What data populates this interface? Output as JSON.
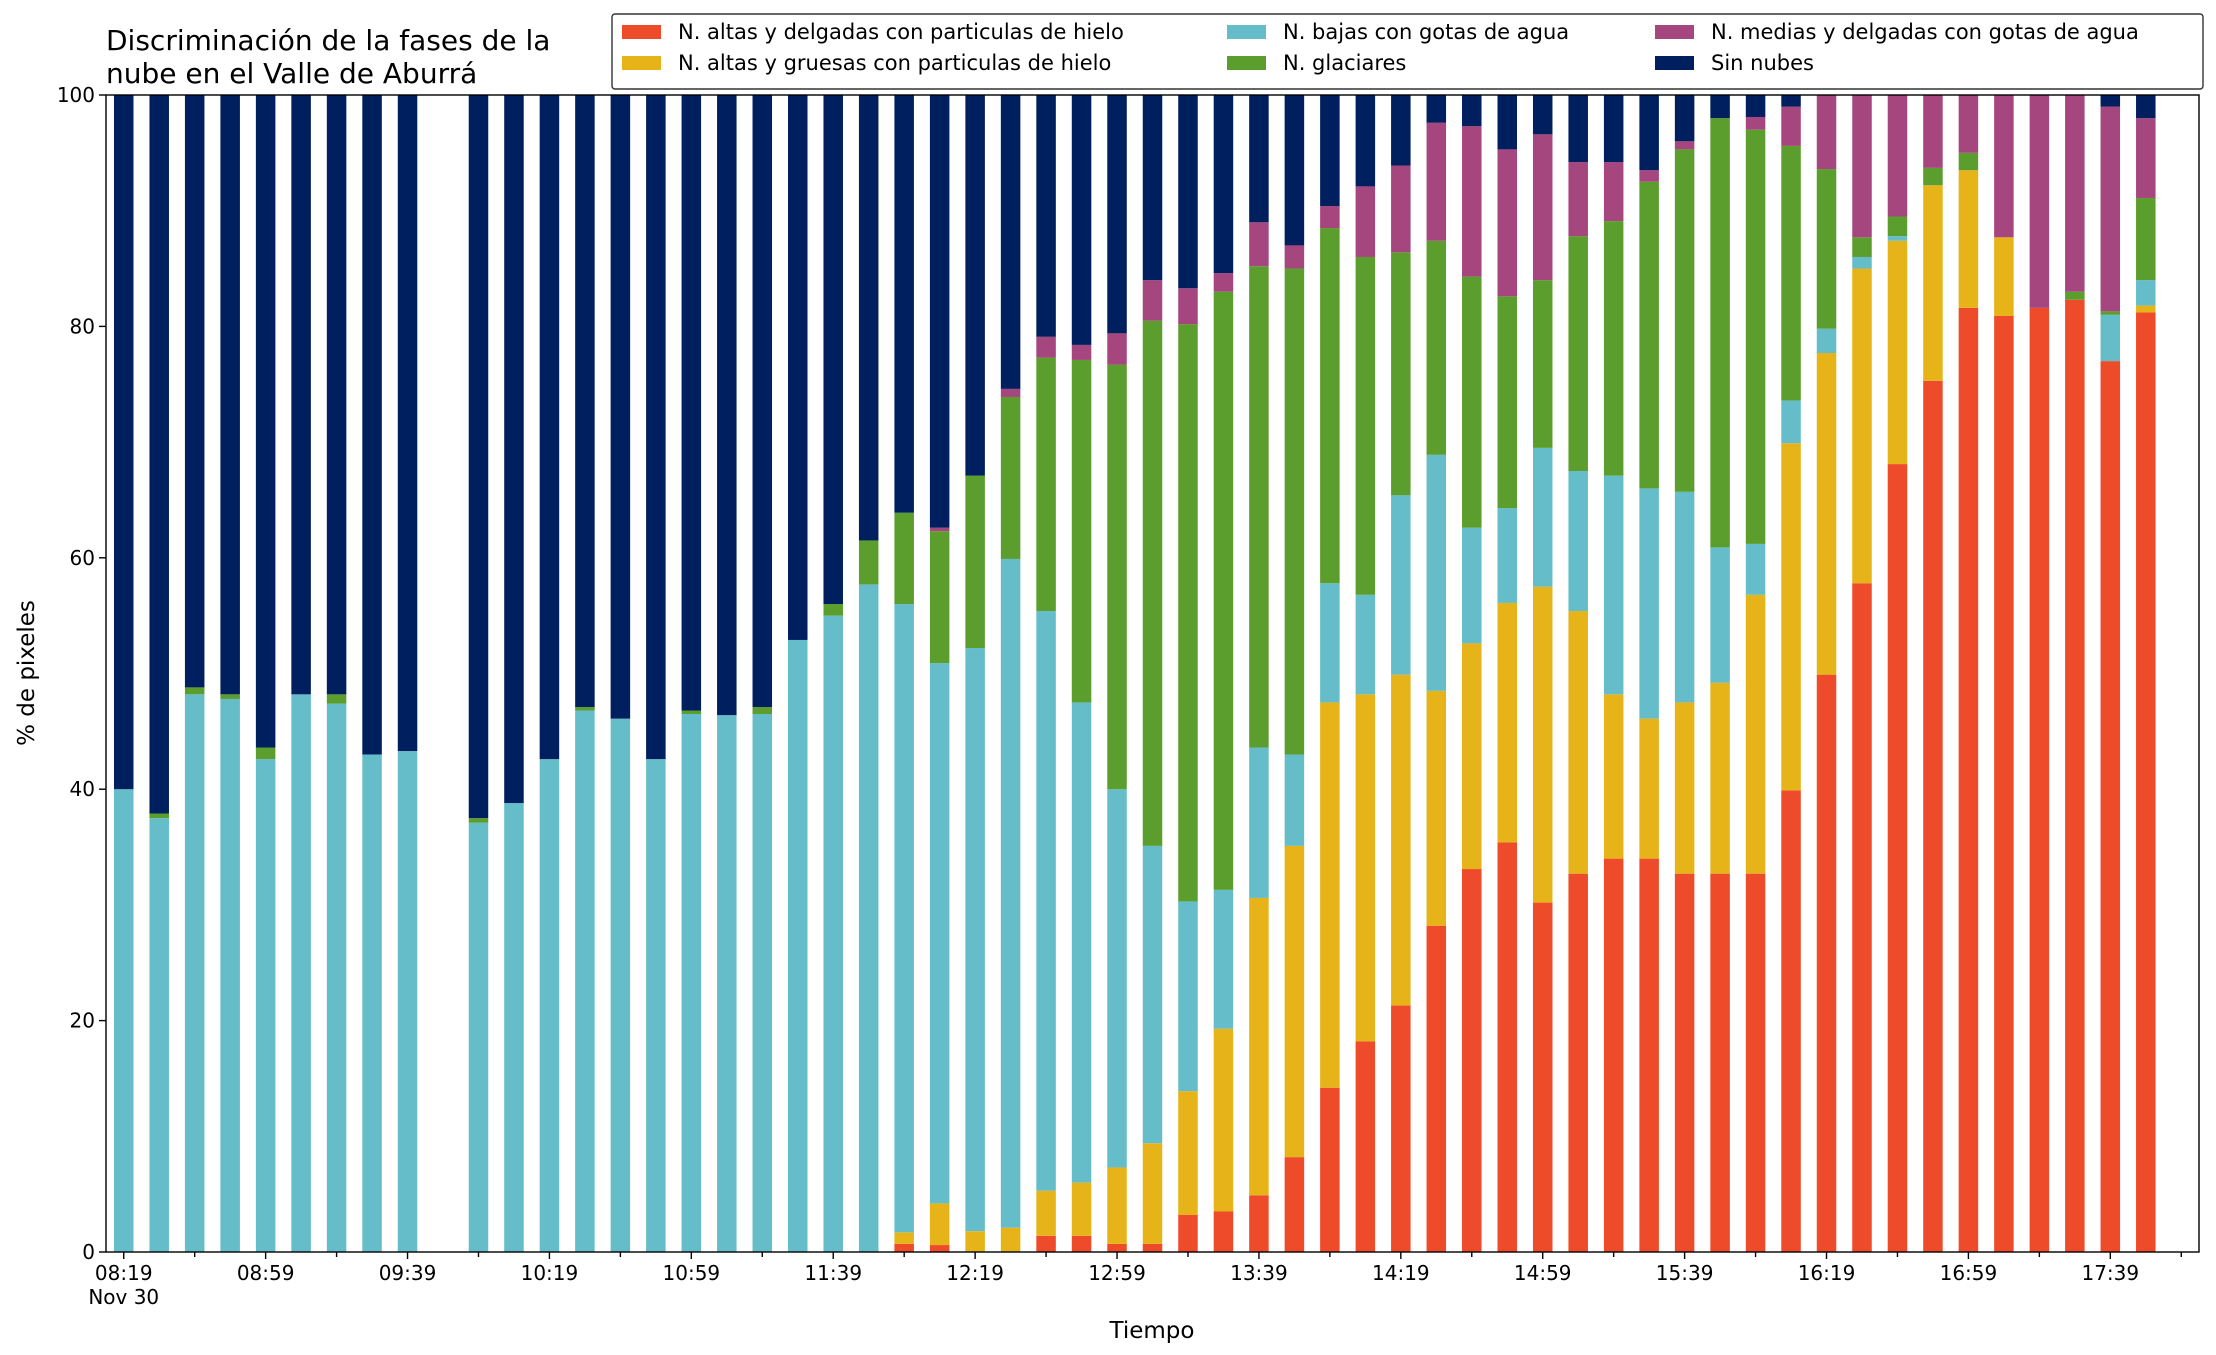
{
  "chart_data": {
    "type": "stacked_bar",
    "title": [
      "Discriminación de la fases de la",
      "nube en el Valle de Aburrá"
    ],
    "x_label": "Tiempo",
    "y_label": "% de pixeles",
    "date_label": "Nov 30",
    "categories": [
      "08:19",
      null,
      null,
      null,
      "08:59",
      null,
      null,
      null,
      "09:39",
      null,
      null,
      null,
      "10:19",
      null,
      null,
      null,
      "10:59",
      null,
      null,
      null,
      "11:39",
      null,
      null,
      null,
      "12:19",
      null,
      null,
      null,
      "12:59",
      null,
      null,
      null,
      "13:39",
      null,
      null,
      null,
      "14:19",
      null,
      null,
      null,
      "14:59",
      null,
      null,
      null,
      "15:39",
      null,
      null,
      null,
      "16:19",
      null,
      null,
      null,
      "16:59",
      null,
      null,
      null,
      "17:39",
      null
    ],
    "ylim": [
      0,
      100
    ],
    "yticks": [
      0,
      20,
      40,
      60,
      80,
      100
    ],
    "legend": "top",
    "series": [
      {
        "name": "N. altas y delgadas con particulas de hielo",
        "color": "#ee4b2b",
        "values": [
          0,
          0,
          0,
          0,
          0,
          0,
          0,
          0,
          0,
          null,
          0,
          0,
          0,
          0,
          0,
          0,
          0,
          0,
          0,
          0,
          0,
          0,
          0.7,
          0.6,
          0,
          0,
          1.4,
          1.4,
          0.7,
          0.7,
          3.2,
          3.5,
          4.9,
          8.2,
          14.2,
          18.2,
          21.3,
          28.2,
          33.1,
          35.4,
          30.2,
          32.7,
          34,
          34,
          32.7,
          32.7,
          32.7,
          39.9,
          49.9,
          57.8,
          68.1,
          75.3,
          81.6,
          80.9,
          81.6,
          82.3,
          77,
          81.2
        ]
      },
      {
        "name": "N. altas y gruesas con particulas de hielo",
        "color": "#e6b419",
        "values": [
          0,
          0,
          0,
          0,
          0,
          0,
          0,
          0,
          0,
          null,
          0,
          0,
          0,
          0,
          0,
          0,
          0,
          0,
          0,
          0,
          0,
          0,
          1.0,
          3.6,
          1.8,
          2.1,
          3.9,
          4.6,
          6.6,
          8.7,
          10.7,
          15.8,
          25.7,
          26.9,
          33.3,
          30,
          28.6,
          20.3,
          19.5,
          20.7,
          27.3,
          22.7,
          14.2,
          12.1,
          14.8,
          16.5,
          24.1,
          30,
          27.8,
          27.2,
          19.3,
          16.9,
          11.9,
          6.8,
          0,
          0,
          0,
          0.6
        ]
      },
      {
        "name": "N. bajas con gotas de agua",
        "color": "#66bdca",
        "values": [
          40,
          37.5,
          48.2,
          47.8,
          42.6,
          48.2,
          47.4,
          43,
          43.3,
          null,
          37.1,
          38.8,
          42.6,
          46.8,
          46.1,
          42.6,
          46.5,
          46.4,
          46.5,
          52.9,
          55,
          57.7,
          54.3,
          46.7,
          50.4,
          57.8,
          50.1,
          41.5,
          32.7,
          25.7,
          16.4,
          12,
          13,
          7.9,
          10.3,
          8.6,
          15.5,
          20.4,
          10,
          8.2,
          12,
          12.1,
          18.9,
          19.9,
          18.2,
          11.7,
          4.4,
          3.7,
          2.1,
          1,
          0.4,
          0,
          0,
          0,
          0,
          0,
          4,
          2.2
        ]
      },
      {
        "name": "N. glaciares",
        "color": "#5c9e2e",
        "values": [
          0,
          0.4,
          0.6,
          0.4,
          1.0,
          0,
          0.8,
          0,
          0,
          null,
          0.4,
          0,
          0,
          0.3,
          0,
          0,
          0.3,
          0,
          0.6,
          0,
          1.0,
          3.8,
          7.9,
          11.4,
          14.9,
          14,
          21.9,
          29.6,
          36.7,
          45.4,
          49.9,
          51.7,
          41.6,
          42,
          30.7,
          29.2,
          21,
          18.5,
          21.7,
          18.3,
          14.5,
          20.3,
          22,
          26.5,
          29.6,
          37.1,
          35.8,
          22,
          13.8,
          1.7,
          1.7,
          1.5,
          1.5,
          0,
          0,
          0.7,
          0.3,
          7.1
        ]
      },
      {
        "name": "N. medias y delgadas con gotas de agua",
        "color": "#a6467e",
        "values": [
          0,
          0,
          0,
          0,
          0,
          0,
          0,
          0,
          0,
          null,
          0,
          0,
          0,
          0,
          0,
          0,
          0,
          0,
          0,
          0,
          0,
          0,
          0,
          0.3,
          0,
          0.7,
          1.8,
          1.3,
          2.7,
          3.5,
          3.1,
          1.6,
          3.8,
          2,
          1.9,
          6.1,
          7.5,
          10.2,
          13,
          12.7,
          12.6,
          6.4,
          5.1,
          1,
          0.7,
          0,
          1.1,
          3.4,
          6.4,
          12.3,
          10.5,
          6.3,
          5,
          12.3,
          18.4,
          17,
          17.7,
          6.9
        ]
      },
      {
        "name": "Sin nubes",
        "color": "#001f5e",
        "values": [
          60,
          62.1,
          51.2,
          51.8,
          56.4,
          51.8,
          51.8,
          57,
          56.7,
          null,
          62.5,
          61.2,
          57.4,
          52.9,
          53.9,
          57.4,
          53.2,
          53.6,
          52.9,
          47.1,
          44,
          38.5,
          36.1,
          37.4,
          32.9,
          25.4,
          20.9,
          21.6,
          20.6,
          16,
          16.7,
          15.4,
          11,
          13,
          9.6,
          7.9,
          6.1,
          2.4,
          2.7,
          4.7,
          3.4,
          5.8,
          5.8,
          6.5,
          4,
          2,
          1.9,
          1,
          0,
          0,
          0,
          0,
          0,
          0,
          0,
          0,
          1,
          2
        ]
      }
    ]
  }
}
